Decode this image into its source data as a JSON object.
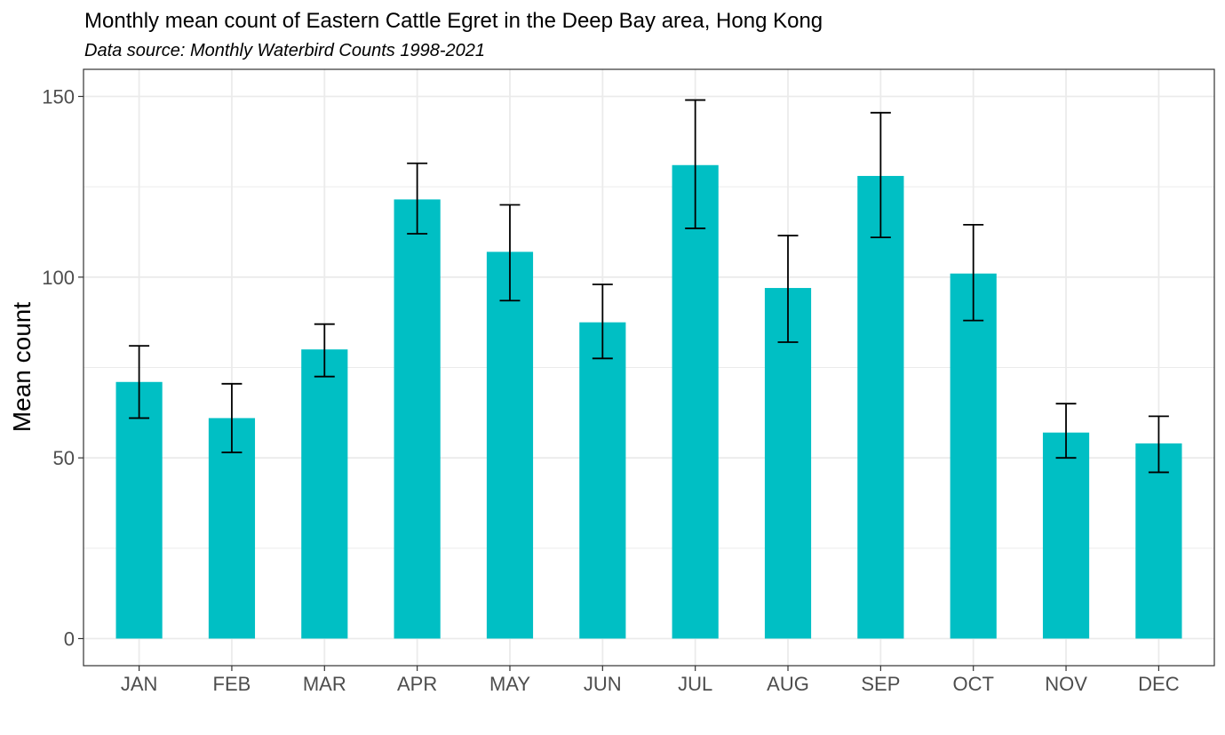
{
  "chart_data": {
    "type": "bar",
    "title": "Monthly mean count of Eastern Cattle Egret in the Deep Bay area, Hong Kong",
    "subtitle": "Data source: Monthly Waterbird Counts 1998-2021",
    "xlabel": "",
    "ylabel": "Mean count",
    "categories": [
      "JAN",
      "FEB",
      "MAR",
      "APR",
      "MAY",
      "JUN",
      "JUL",
      "AUG",
      "SEP",
      "OCT",
      "NOV",
      "DEC"
    ],
    "values": [
      71,
      61,
      80,
      121.5,
      107,
      87.5,
      131,
      97,
      128,
      101,
      57,
      54
    ],
    "error_low": [
      61,
      51.5,
      72.5,
      112,
      93.5,
      77.5,
      113.5,
      82,
      111,
      88,
      50,
      46
    ],
    "error_high": [
      81,
      70.5,
      87,
      131.5,
      120,
      98,
      149,
      111.5,
      145.5,
      114.5,
      65,
      61.5
    ],
    "yticks": [
      0,
      50,
      100,
      150
    ],
    "ylim": [
      -7.5,
      157.5
    ],
    "grid": true,
    "legend": "none",
    "colors": {
      "bar": "#00BFC4",
      "errorbar": "#000000",
      "grid": "#ebebeb",
      "panel_border": "#333333",
      "tick_label": "#4d4d4d"
    }
  }
}
